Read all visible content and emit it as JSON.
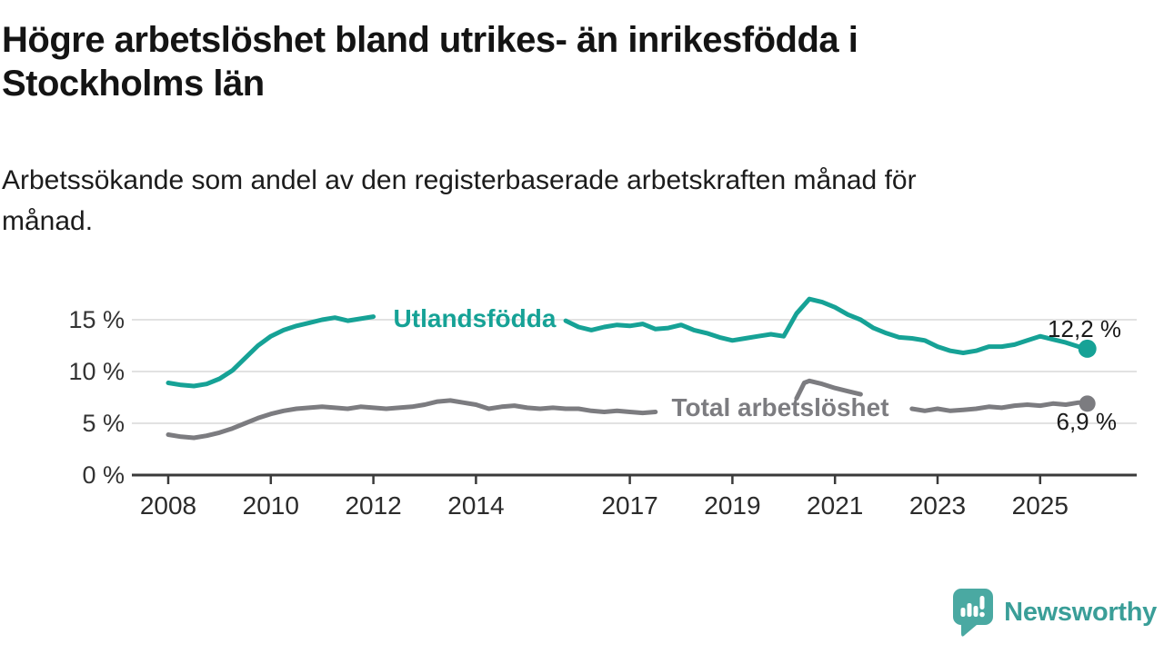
{
  "header": {
    "title": "Högre arbetslöshet bland utrikes- än inrikesfödda i\nStockholms län",
    "subtitle": "Arbetssökande som andel av den registerbaserade arbetskraften månad för\nmånad."
  },
  "chart_data": {
    "type": "line",
    "title": "Högre arbetslöshet bland utrikes- än inrikesfödda i Stockholms län",
    "subtitle": "Arbetssökande som andel av den registerbaserade arbetskraften månad för månad.",
    "x_axis": {
      "unit": "year",
      "range": [
        2007.3,
        2026.1
      ],
      "ticks": [
        {
          "year": 2008,
          "label": "2008"
        },
        {
          "year": 2010,
          "label": "2010"
        },
        {
          "year": 2012,
          "label": "2012"
        },
        {
          "year": 2014,
          "label": "2014"
        },
        {
          "year": 2017,
          "label": "2017"
        },
        {
          "year": 2019,
          "label": "2019"
        },
        {
          "year": 2021,
          "label": "2021"
        },
        {
          "year": 2023,
          "label": "2023"
        },
        {
          "year": 2025,
          "label": "2025"
        }
      ]
    },
    "y_axis": {
      "unit": "%",
      "range": [
        0,
        18.5
      ],
      "grid": true,
      "ticks": [
        {
          "value": 0,
          "label": "0 %"
        },
        {
          "value": 5,
          "label": "5 %"
        },
        {
          "value": 10,
          "label": "10 %"
        },
        {
          "value": 15,
          "label": "15 %"
        }
      ]
    },
    "series": [
      {
        "id": "utlandsfodda",
        "label": "Utlandsfödda",
        "color": "#16a296",
        "end_label": "12,2 %",
        "end_value": 12.2,
        "points": [
          [
            2008.0,
            8.9
          ],
          [
            2008.25,
            8.7
          ],
          [
            2008.5,
            8.6
          ],
          [
            2008.75,
            8.8
          ],
          [
            2009.0,
            9.3
          ],
          [
            2009.25,
            10.1
          ],
          [
            2009.5,
            11.3
          ],
          [
            2009.75,
            12.5
          ],
          [
            2010.0,
            13.4
          ],
          [
            2010.25,
            14.0
          ],
          [
            2010.5,
            14.4
          ],
          [
            2010.75,
            14.7
          ],
          [
            2011.0,
            15.0
          ],
          [
            2011.25,
            15.2
          ],
          [
            2011.5,
            14.9
          ],
          [
            2011.75,
            15.1
          ],
          [
            2012.0,
            15.3
          ],
          [
            2012.25,
            null
          ],
          [
            2012.5,
            null
          ],
          [
            2012.75,
            null
          ],
          [
            2013.0,
            null
          ],
          [
            2013.25,
            null
          ],
          [
            2013.5,
            null
          ],
          [
            2013.75,
            null
          ],
          [
            2014.0,
            null
          ],
          [
            2014.25,
            null
          ],
          [
            2014.5,
            null
          ],
          [
            2014.75,
            null
          ],
          [
            2015.0,
            null
          ],
          [
            2015.25,
            null
          ],
          [
            2015.5,
            null
          ],
          [
            2015.75,
            14.9
          ],
          [
            2016.0,
            14.3
          ],
          [
            2016.25,
            14.0
          ],
          [
            2016.5,
            14.3
          ],
          [
            2016.75,
            14.5
          ],
          [
            2017.0,
            14.4
          ],
          [
            2017.25,
            14.6
          ],
          [
            2017.5,
            14.1
          ],
          [
            2017.75,
            14.2
          ],
          [
            2018.0,
            14.5
          ],
          [
            2018.25,
            14.0
          ],
          [
            2018.5,
            13.7
          ],
          [
            2018.75,
            13.3
          ],
          [
            2019.0,
            13.0
          ],
          [
            2019.25,
            13.2
          ],
          [
            2019.5,
            13.4
          ],
          [
            2019.75,
            13.6
          ],
          [
            2020.0,
            13.4
          ],
          [
            2020.25,
            15.6
          ],
          [
            2020.5,
            17.0
          ],
          [
            2020.75,
            16.7
          ],
          [
            2021.0,
            16.2
          ],
          [
            2021.25,
            15.5
          ],
          [
            2021.5,
            15.0
          ],
          [
            2021.75,
            14.2
          ],
          [
            2022.0,
            13.7
          ],
          [
            2022.25,
            13.3
          ],
          [
            2022.5,
            13.2
          ],
          [
            2022.75,
            13.0
          ],
          [
            2023.0,
            12.4
          ],
          [
            2023.25,
            12.0
          ],
          [
            2023.5,
            11.8
          ],
          [
            2023.75,
            12.0
          ],
          [
            2024.0,
            12.4
          ],
          [
            2024.25,
            12.4
          ],
          [
            2024.5,
            12.6
          ],
          [
            2024.75,
            13.0
          ],
          [
            2025.0,
            13.4
          ],
          [
            2025.25,
            13.1
          ],
          [
            2025.5,
            12.8
          ],
          [
            2025.75,
            12.4
          ],
          [
            2025.92,
            12.2
          ]
        ]
      },
      {
        "id": "total",
        "label": "Total arbetslöshet",
        "color": "#7c7c80",
        "end_label": "6,9 %",
        "end_value": 6.9,
        "points": [
          [
            2008.0,
            3.9
          ],
          [
            2008.25,
            3.7
          ],
          [
            2008.5,
            3.6
          ],
          [
            2008.75,
            3.8
          ],
          [
            2009.0,
            4.1
          ],
          [
            2009.25,
            4.5
          ],
          [
            2009.5,
            5.0
          ],
          [
            2009.75,
            5.5
          ],
          [
            2010.0,
            5.9
          ],
          [
            2010.25,
            6.2
          ],
          [
            2010.5,
            6.4
          ],
          [
            2010.75,
            6.5
          ],
          [
            2011.0,
            6.6
          ],
          [
            2011.25,
            6.5
          ],
          [
            2011.5,
            6.4
          ],
          [
            2011.75,
            6.6
          ],
          [
            2012.0,
            6.5
          ],
          [
            2012.25,
            6.4
          ],
          [
            2012.5,
            6.5
          ],
          [
            2012.75,
            6.6
          ],
          [
            2013.0,
            6.8
          ],
          [
            2013.25,
            7.1
          ],
          [
            2013.5,
            7.2
          ],
          [
            2013.75,
            7.0
          ],
          [
            2014.0,
            6.8
          ],
          [
            2014.25,
            6.4
          ],
          [
            2014.5,
            6.6
          ],
          [
            2014.75,
            6.7
          ],
          [
            2015.0,
            6.5
          ],
          [
            2015.25,
            6.4
          ],
          [
            2015.5,
            6.5
          ],
          [
            2015.75,
            6.4
          ],
          [
            2016.0,
            6.4
          ],
          [
            2016.25,
            6.2
          ],
          [
            2016.5,
            6.1
          ],
          [
            2016.75,
            6.2
          ],
          [
            2017.0,
            6.1
          ],
          [
            2017.25,
            6.0
          ],
          [
            2017.5,
            6.1
          ],
          [
            2017.75,
            null
          ],
          [
            2018.0,
            null
          ],
          [
            2018.25,
            null
          ],
          [
            2018.5,
            null
          ],
          [
            2018.75,
            null
          ],
          [
            2019.0,
            null
          ],
          [
            2019.25,
            null
          ],
          [
            2019.5,
            null
          ],
          [
            2019.75,
            null
          ],
          [
            2020.0,
            null
          ],
          [
            2020.25,
            7.4
          ],
          [
            2020.4,
            8.9
          ],
          [
            2020.5,
            9.1
          ],
          [
            2020.75,
            8.8
          ],
          [
            2021.0,
            8.4
          ],
          [
            2021.25,
            8.1
          ],
          [
            2021.5,
            7.8
          ],
          [
            2021.75,
            null
          ],
          [
            2022.0,
            null
          ],
          [
            2022.25,
            null
          ],
          [
            2022.5,
            6.4
          ],
          [
            2022.75,
            6.2
          ],
          [
            2023.0,
            6.4
          ],
          [
            2023.25,
            6.2
          ],
          [
            2023.5,
            6.3
          ],
          [
            2023.75,
            6.4
          ],
          [
            2024.0,
            6.6
          ],
          [
            2024.25,
            6.5
          ],
          [
            2024.5,
            6.7
          ],
          [
            2024.75,
            6.8
          ],
          [
            2025.0,
            6.7
          ],
          [
            2025.25,
            6.9
          ],
          [
            2025.5,
            6.8
          ],
          [
            2025.75,
            7.0
          ],
          [
            2025.92,
            6.9
          ]
        ]
      }
    ],
    "colors": {
      "grid": "#d9d9d9",
      "axis": "#3a3a3a",
      "tick_text": "#333333",
      "end_label_text": "#1a1a1a"
    }
  },
  "footer": {
    "brand": "Newsworthy",
    "brand_text_color": "#3a9e98",
    "logo_color": "#4aa9a2"
  }
}
